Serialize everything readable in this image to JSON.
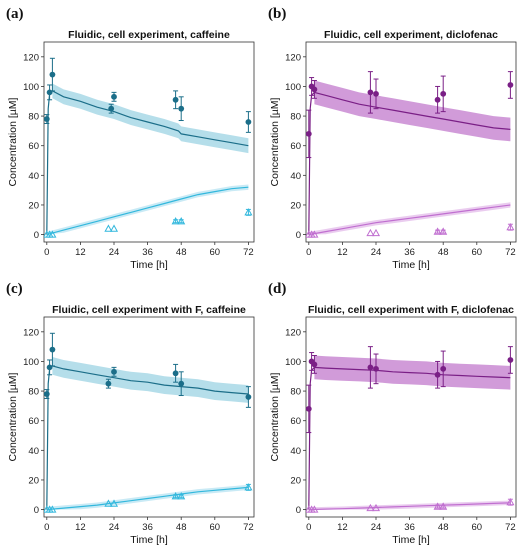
{
  "chart_data": [
    {
      "type": "line",
      "panel_label": "(a)",
      "title": "Fluidic, cell experiment, caffeine",
      "xlabel": "Time [h]",
      "ylabel": "Concentration [µM]",
      "xlim": [
        -1,
        74
      ],
      "ylim": [
        -5,
        130
      ],
      "xticks": [
        0,
        12,
        24,
        36,
        48,
        60,
        72
      ],
      "yticks": [
        0,
        20,
        40,
        60,
        80,
        100,
        120
      ],
      "colors": {
        "upper": "#1b6e89",
        "upper_band": "#a8d8e6",
        "lower": "#33b8dd",
        "lower_band": "#bfe6f3"
      },
      "series": [
        {
          "name": "",
          "kind": "model_upper",
          "x": [
            0,
            0.5,
            1,
            2,
            6,
            12,
            18,
            24,
            30,
            36,
            42,
            47,
            48,
            54,
            60,
            66,
            72
          ],
          "y": [
            0,
            85,
            95,
            97,
            93,
            90,
            86,
            83,
            79,
            76,
            73,
            70,
            68,
            66,
            64,
            62,
            60
          ],
          "band": 5
        },
        {
          "name": "",
          "kind": "model_lower",
          "x": [
            0,
            6,
            12,
            18,
            24,
            30,
            36,
            42,
            48,
            54,
            60,
            66,
            72
          ],
          "y": [
            0,
            3,
            6,
            9,
            12,
            15,
            18,
            21,
            24,
            27,
            29,
            31,
            32
          ],
          "band": 1.8
        },
        {
          "name": "",
          "kind": "obs_upper",
          "x": [
            0,
            1,
            2,
            23,
            24,
            46,
            48,
            72
          ],
          "y": [
            78,
            96,
            108,
            85,
            93,
            91,
            85,
            76
          ],
          "err": [
            3,
            5,
            11,
            3,
            3,
            6,
            8,
            7
          ]
        },
        {
          "name": "",
          "kind": "obs_lower",
          "x": [
            0,
            1,
            2,
            22,
            24,
            46,
            48,
            72
          ],
          "y": [
            0,
            0,
            0,
            4,
            4,
            9,
            9,
            15
          ],
          "err": [
            0,
            0,
            0,
            0,
            0,
            1,
            1,
            2
          ]
        }
      ]
    },
    {
      "type": "line",
      "panel_label": "(b)",
      "title": "Fluidic, cell experiment, diclofenac",
      "xlabel": "Time [h]",
      "ylabel": "Concentration [µM]",
      "xlim": [
        -1,
        74
      ],
      "ylim": [
        -5,
        130
      ],
      "xticks": [
        0,
        12,
        24,
        36,
        48,
        60,
        72
      ],
      "yticks": [
        0,
        20,
        40,
        60,
        80,
        100,
        120
      ],
      "colors": {
        "upper": "#7a1f86",
        "upper_band": "#c98ad2",
        "lower": "#c06fd0",
        "lower_band": "#e6c3ec"
      },
      "series": [
        {
          "name": "",
          "kind": "model_upper",
          "x": [
            0,
            0.5,
            1,
            2,
            6,
            12,
            18,
            24,
            30,
            36,
            42,
            48,
            54,
            60,
            66,
            72
          ],
          "y": [
            0,
            85,
            94,
            96,
            94,
            91,
            88,
            86,
            84,
            82,
            80,
            78,
            76,
            74,
            72,
            71
          ],
          "band": 8
        },
        {
          "name": "",
          "kind": "model_lower",
          "x": [
            0,
            6,
            12,
            18,
            24,
            30,
            36,
            42,
            48,
            54,
            60,
            66,
            72
          ],
          "y": [
            0,
            2,
            4,
            6,
            8,
            9.5,
            11,
            12.5,
            14,
            15.5,
            17,
            18.5,
            20
          ],
          "band": 1.8
        },
        {
          "name": "",
          "kind": "obs_upper",
          "x": [
            0,
            1,
            2,
            22,
            24,
            46,
            48,
            72
          ],
          "y": [
            68,
            100,
            98,
            96,
            95,
            91,
            95,
            101
          ],
          "err": [
            16,
            6,
            6,
            14,
            10,
            9,
            12,
            9
          ]
        },
        {
          "name": "",
          "kind": "obs_lower",
          "x": [
            0,
            1,
            2,
            22,
            24,
            46,
            48,
            72
          ],
          "y": [
            0,
            0,
            0,
            1,
            1,
            2,
            2,
            5
          ],
          "err": [
            0,
            0,
            0,
            0,
            0,
            1,
            1,
            2
          ]
        }
      ]
    },
    {
      "type": "line",
      "panel_label": "(c)",
      "title": "Fluidic, cell experiment with F, caffeine",
      "xlabel": "Time [h]",
      "ylabel": "Concentration [µM]",
      "xlim": [
        -1,
        74
      ],
      "ylim": [
        -5,
        130
      ],
      "xticks": [
        0,
        12,
        24,
        36,
        48,
        60,
        72
      ],
      "yticks": [
        0,
        20,
        40,
        60,
        80,
        100,
        120
      ],
      "colors": {
        "upper": "#1b6e89",
        "upper_band": "#a8d8e6",
        "lower": "#33b8dd",
        "lower_band": "#bfe6f3"
      },
      "series": [
        {
          "name": "",
          "kind": "model_upper",
          "x": [
            0,
            0.5,
            1,
            2,
            6,
            12,
            18,
            24,
            30,
            36,
            42,
            48,
            54,
            60,
            66,
            72
          ],
          "y": [
            0,
            85,
            95,
            97,
            95,
            93,
            91,
            89,
            87,
            86,
            84,
            83,
            82,
            80,
            79,
            78
          ],
          "band": 6
        },
        {
          "name": "",
          "kind": "model_lower",
          "x": [
            0,
            6,
            12,
            18,
            24,
            30,
            36,
            42,
            48,
            54,
            60,
            66,
            72
          ],
          "y": [
            0,
            1,
            2,
            3,
            4.5,
            6,
            7.5,
            9,
            10.5,
            12,
            13,
            14,
            15
          ],
          "band": 1.8
        },
        {
          "name": "",
          "kind": "obs_upper",
          "x": [
            0,
            1,
            2,
            22,
            24,
            46,
            48,
            72
          ],
          "y": [
            78,
            96,
            108,
            85,
            93,
            92,
            85,
            76
          ],
          "err": [
            3,
            5,
            11,
            3,
            3,
            6,
            8,
            7
          ]
        },
        {
          "name": "",
          "kind": "obs_lower",
          "x": [
            0,
            1,
            2,
            22,
            24,
            46,
            48,
            72
          ],
          "y": [
            0,
            0,
            0,
            4,
            4,
            9,
            9,
            15
          ],
          "err": [
            0,
            0,
            0,
            0,
            0,
            1,
            1,
            2
          ]
        }
      ]
    },
    {
      "type": "line",
      "panel_label": "(d)",
      "title": "Fluidic, cell experiment with F, diclofenac",
      "xlabel": "Time [h]",
      "ylabel": "Concentration [µM]",
      "xlim": [
        -1,
        74
      ],
      "ylim": [
        -5,
        130
      ],
      "xticks": [
        0,
        12,
        24,
        36,
        48,
        60,
        72
      ],
      "yticks": [
        0,
        20,
        40,
        60,
        80,
        100,
        120
      ],
      "colors": {
        "upper": "#7a1f86",
        "upper_band": "#c98ad2",
        "lower": "#c06fd0",
        "lower_band": "#e6c3ec"
      },
      "series": [
        {
          "name": "",
          "kind": "model_upper",
          "x": [
            0,
            0.5,
            1,
            2,
            6,
            12,
            18,
            24,
            30,
            36,
            42,
            48,
            54,
            60,
            66,
            72
          ],
          "y": [
            0,
            85,
            94,
            96,
            95.5,
            95,
            94.5,
            94,
            93,
            92.5,
            92,
            91,
            90.5,
            90,
            89.5,
            89
          ],
          "band": 8
        },
        {
          "name": "",
          "kind": "model_lower",
          "x": [
            0,
            6,
            12,
            18,
            24,
            30,
            36,
            42,
            48,
            54,
            60,
            66,
            72
          ],
          "y": [
            0,
            0.3,
            0.6,
            1,
            1.4,
            1.8,
            2.2,
            2.6,
            3,
            3.4,
            3.8,
            4.2,
            4.6
          ],
          "band": 1.5
        },
        {
          "name": "",
          "kind": "obs_upper",
          "x": [
            0,
            1,
            2,
            22,
            24,
            46,
            48,
            72
          ],
          "y": [
            68,
            100,
            98,
            96,
            95,
            91,
            95,
            101
          ],
          "err": [
            16,
            6,
            6,
            14,
            10,
            9,
            12,
            9
          ]
        },
        {
          "name": "",
          "kind": "obs_lower",
          "x": [
            0,
            1,
            2,
            22,
            24,
            46,
            48,
            72
          ],
          "y": [
            0,
            0,
            0,
            1,
            1,
            2,
            2,
            5
          ],
          "err": [
            0,
            0,
            0,
            0,
            0,
            1,
            1,
            2
          ]
        }
      ]
    }
  ]
}
